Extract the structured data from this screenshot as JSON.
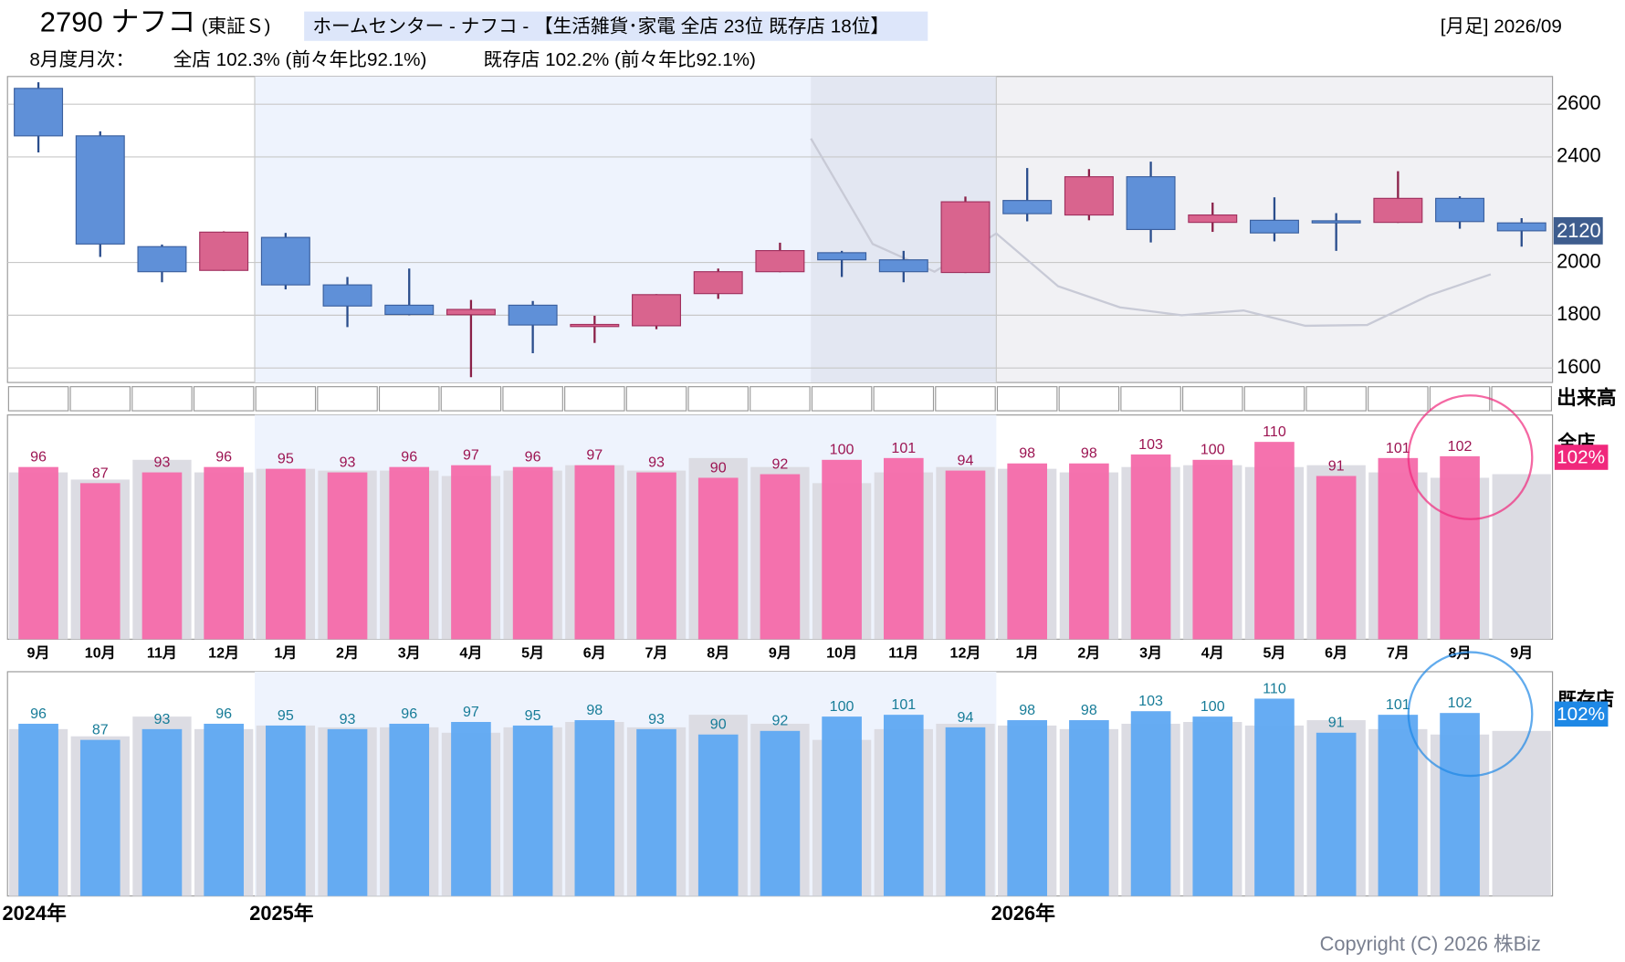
{
  "header": {
    "code_name": "2790 ナフコ",
    "market": "(東証Ｓ)",
    "industry": "ホームセンター - ナフコ - 【生活雑貨･家電 全店 23位 既存店 18位】",
    "period": "[月足] 2026/09",
    "monthly_label": "8月度月次：",
    "all_stores": "全店 102.3% (前々年比92.1%)",
    "existing_stores": "既存店 102.2% (前々年比92.1%)"
  },
  "copyright": "Copyright (C) 2026 株Biz",
  "chart_data": [
    {
      "type": "candlestick",
      "open": [
        2660,
        2480,
        2060,
        1970,
        2095,
        1915,
        1838,
        1802,
        1838,
        1760,
        1760,
        1882,
        1965,
        2037,
        2010,
        1962,
        2235,
        2180,
        2325,
        2152,
        2160,
        2158,
        2152,
        2243,
        2150
      ],
      "high": [
        2683,
        2497,
        2068,
        2118,
        2112,
        1945,
        1977,
        1858,
        1854,
        1798,
        1880,
        1977,
        2075,
        2044,
        2044,
        2250,
        2358,
        2354,
        2382,
        2227,
        2247,
        2187,
        2346,
        2251,
        2168
      ],
      "low": [
        2417,
        2021,
        1925,
        1968,
        1898,
        1755,
        1800,
        1565,
        1656,
        1695,
        1747,
        1862,
        1963,
        1945,
        1925,
        1960,
        2156,
        2160,
        2076,
        2116,
        2080,
        2044,
        2150,
        2128,
        2060
      ],
      "close": [
        2480,
        2070,
        1965,
        2115,
        1915,
        1835,
        1803,
        1822,
        1763,
        1765,
        1878,
        1965,
        2045,
        2010,
        1965,
        2230,
        2185,
        2325,
        2125,
        2180,
        2112,
        2153,
        2243,
        2155,
        2120
      ],
      "up_color": "#d9648e",
      "down_color": "#5f90d8",
      "line_values": [
        null,
        null,
        null,
        null,
        null,
        null,
        null,
        null,
        null,
        null,
        null,
        null,
        null,
        2470,
        2070,
        1965,
        2110,
        1910,
        1830,
        1800,
        1818,
        1760,
        1763,
        1875,
        1955
      ],
      "line_color": "#c8cad6",
      "ylim": [
        1545,
        2705
      ],
      "yticks": [
        1600,
        1800,
        2000,
        2400,
        2600
      ],
      "grid": true,
      "price_tag": 2120,
      "volume_label": "出来高"
    },
    {
      "type": "bar",
      "name": "全店",
      "tag": "102%",
      "categories": [
        "9月",
        "10月",
        "11月",
        "12月",
        "1月",
        "2月",
        "3月",
        "4月",
        "5月",
        "6月",
        "7月",
        "8月",
        "9月",
        "10月",
        "11月",
        "12月",
        "1月",
        "2月",
        "3月",
        "4月",
        "5月",
        "6月",
        "7月",
        "8月",
        "9月"
      ],
      "series": [
        {
          "color": "#dcdce3",
          "values": [
            93,
            89,
            100,
            93,
            95,
            94,
            94,
            91,
            94,
            97,
            94,
            101,
            96,
            87,
            93,
            96,
            95,
            93,
            96,
            97,
            96,
            97,
            93,
            90,
            92
          ]
        },
        {
          "name": "全店",
          "color": "#f46aaa",
          "values": [
            96,
            87,
            93,
            96,
            95,
            93,
            96,
            97,
            96,
            97,
            93,
            90,
            92,
            100,
            101,
            94,
            98,
            98,
            103,
            100,
            110,
            91,
            101,
            102,
            null
          ]
        }
      ],
      "label_color": "#9c1452",
      "tag_color": "#f0287c",
      "ylim": [
        0,
        125
      ]
    },
    {
      "type": "bar",
      "name": "既存店",
      "tag": "102%",
      "series": [
        {
          "color": "#dcdce3",
          "values": [
            93,
            89,
            100,
            93,
            95,
            94,
            94,
            91,
            94,
            97,
            94,
            101,
            96,
            87,
            93,
            96,
            95,
            93,
            96,
            97,
            95,
            98,
            93,
            90,
            92
          ]
        },
        {
          "name": "既存店",
          "color": "#5ea8f2",
          "values": [
            96,
            87,
            93,
            96,
            95,
            93,
            96,
            97,
            95,
            98,
            93,
            90,
            92,
            100,
            101,
            94,
            98,
            98,
            103,
            100,
            110,
            91,
            101,
            102,
            null
          ]
        }
      ],
      "label_color": "#177c98",
      "tag_color": "#1e88e5",
      "ylim": [
        0,
        125
      ],
      "year_labels": [
        "2024年",
        "2025年",
        "2026年"
      ]
    }
  ]
}
